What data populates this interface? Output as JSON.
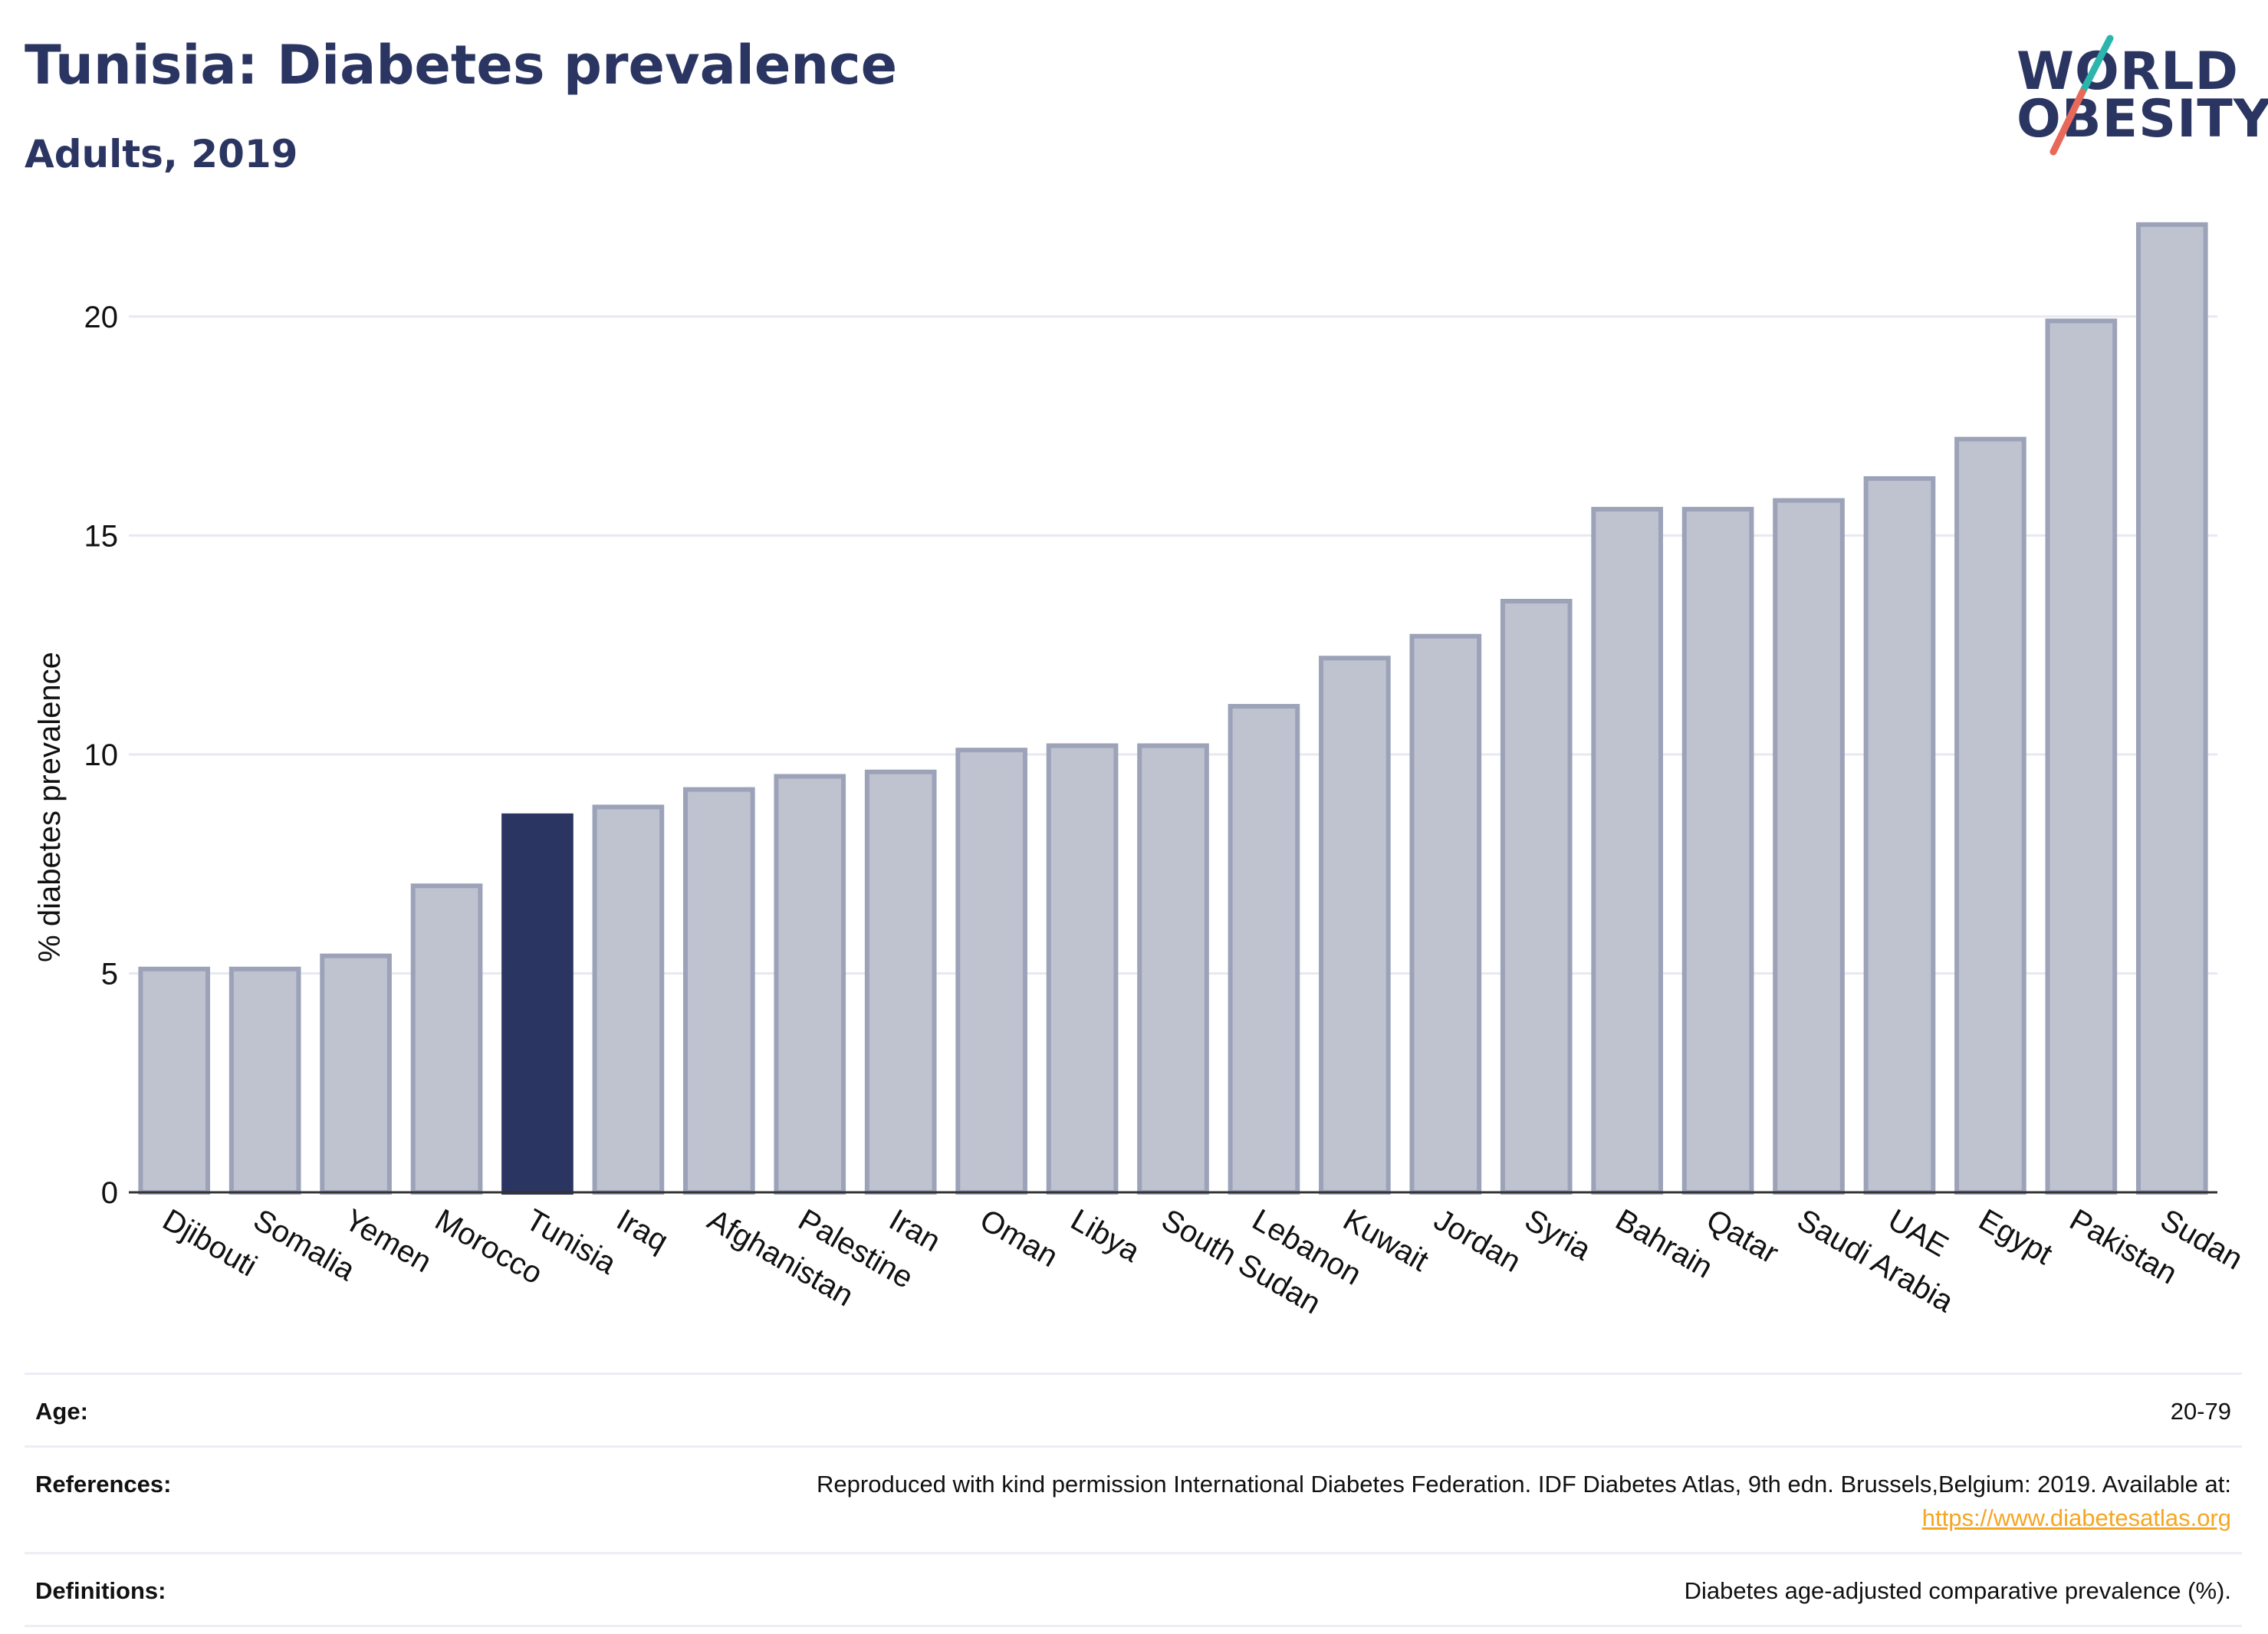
{
  "header": {
    "title": "Tunisia: Diabetes prevalence",
    "subtitle": "Adults, 2019"
  },
  "logo": {
    "line1": "WORLD",
    "line2": "OBESITY",
    "colors": {
      "text": "#2b3562",
      "slash_teal": "#2bb5ac",
      "slash_red": "#e8695a"
    }
  },
  "colors": {
    "highlight_bar": "#2b3562",
    "other_bar_fill": "#bfc3d0",
    "other_bar_stroke": "#9ca2b8",
    "gridline": "#e8e9f0",
    "axis": "#333333",
    "link": "#f5a623"
  },
  "chart_data": {
    "type": "bar",
    "title": "Tunisia: Diabetes prevalence",
    "subtitle": "Adults, 2019",
    "ylabel": "% diabetes prevalence",
    "xlabel": "",
    "ylim": [
      0,
      22.5
    ],
    "yticks": [
      0,
      5,
      10,
      15,
      20
    ],
    "grid": true,
    "highlight": "Tunisia",
    "categories": [
      "Djibouti",
      "Somalia",
      "Yemen",
      "Morocco",
      "Tunisia",
      "Iraq",
      "Afghanistan",
      "Palestine",
      "Iran",
      "Oman",
      "Libya",
      "South Sudan",
      "Lebanon",
      "Kuwait",
      "Jordan",
      "Syria",
      "Bahrain",
      "Qatar",
      "Saudi Arabia",
      "UAE",
      "Egypt",
      "Pakistan",
      "Sudan"
    ],
    "values": [
      5.1,
      5.1,
      5.4,
      7.0,
      8.6,
      8.8,
      9.2,
      9.5,
      9.6,
      10.1,
      10.2,
      10.2,
      11.1,
      12.2,
      12.7,
      13.5,
      15.6,
      15.6,
      15.8,
      16.3,
      17.2,
      19.9,
      22.1
    ]
  },
  "info": {
    "age_label": "Age:",
    "age_value": "20-79",
    "references_label": "References:",
    "references_value": "Reproduced with kind permission International Diabetes Federation. IDF Diabetes Atlas, 9th edn. Brussels,Belgium: 2019. Available at:",
    "references_link": "https://www.diabetesatlas.org",
    "definitions_label": "Definitions:",
    "definitions_value": "Diabetes age-adjusted comparative prevalence (%)."
  }
}
